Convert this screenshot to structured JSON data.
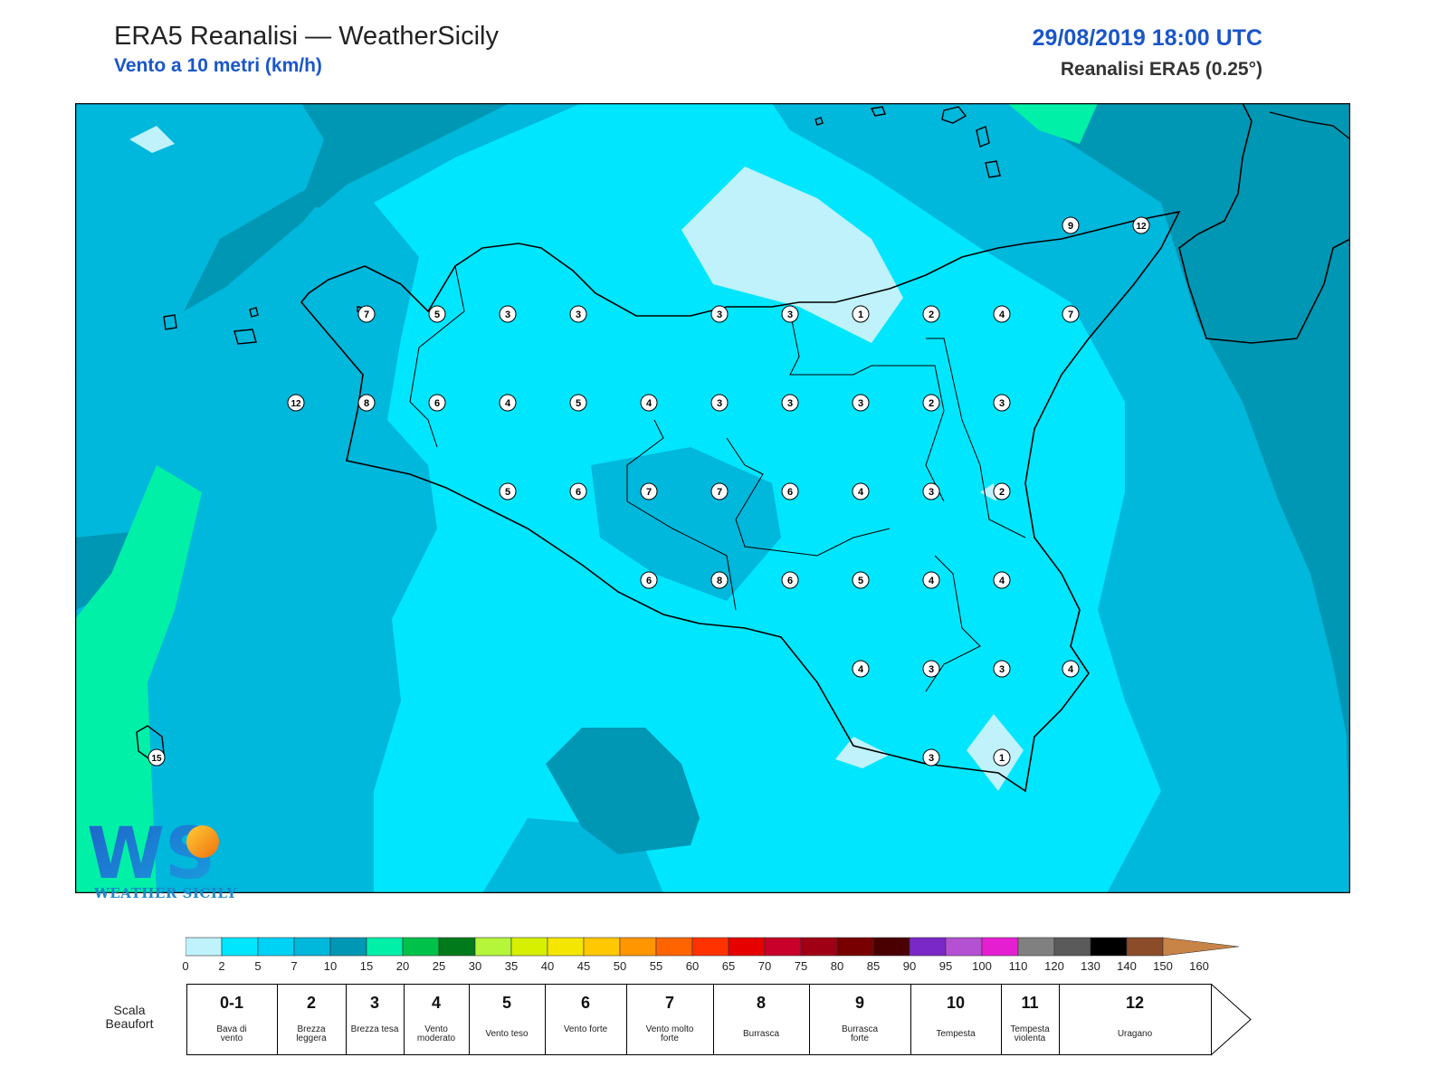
{
  "header": {
    "title": "ERA5 Reanalisi — WeatherSicily",
    "subtitle": "Vento a 10 metri (km/h)",
    "datetime": "29/08/2019 18:00 UTC",
    "source": "Reanalisi ERA5 (0.25°)"
  },
  "logo": {
    "text": "WEATHER SICILY",
    "mark": "WS"
  },
  "colors": {
    "sea_dark": "#0097b4",
    "mid": "#00b7dc",
    "light": "#00e6ff",
    "palest": "#bff2fb",
    "green": "#00f0a8",
    "coast": "#000000"
  },
  "map_values": [
    {
      "v": "7"
    },
    {
      "v": "5"
    },
    {
      "v": "3"
    },
    {
      "v": "3"
    },
    {
      "v": "3"
    },
    {
      "v": "3"
    },
    {
      "v": "1"
    },
    {
      "v": "2"
    },
    {
      "v": "4"
    },
    {
      "v": "7"
    },
    {
      "v": "12"
    },
    {
      "v": "8"
    },
    {
      "v": "6"
    },
    {
      "v": "4"
    },
    {
      "v": "5"
    },
    {
      "v": "4"
    },
    {
      "v": "3"
    },
    {
      "v": "3"
    },
    {
      "v": "3"
    },
    {
      "v": "2"
    },
    {
      "v": "3"
    },
    {
      "v": "5"
    },
    {
      "v": "6"
    },
    {
      "v": "7"
    },
    {
      "v": "7"
    },
    {
      "v": "6"
    },
    {
      "v": "4"
    },
    {
      "v": "3"
    },
    {
      "v": "2"
    },
    {
      "v": "6"
    },
    {
      "v": "8"
    },
    {
      "v": "6"
    },
    {
      "v": "5"
    },
    {
      "v": "4"
    },
    {
      "v": "4"
    },
    {
      "v": "4"
    },
    {
      "v": "3"
    },
    {
      "v": "3"
    },
    {
      "v": "4"
    },
    {
      "v": "3"
    },
    {
      "v": "1"
    },
    {
      "v": "9"
    },
    {
      "v": "12"
    },
    {
      "v": "15"
    }
  ],
  "colorbar": {
    "colors": [
      "#bff2fb",
      "#00e6ff",
      "#00d2f5",
      "#00b7dc",
      "#0097b4",
      "#00f0a8",
      "#00c24a",
      "#007a1a",
      "#b5f53a",
      "#d6f000",
      "#f5e600",
      "#ffc800",
      "#ff9600",
      "#ff6400",
      "#ff3200",
      "#e60000",
      "#c8002a",
      "#a00014",
      "#780000",
      "#4b0000",
      "#7a28c8",
      "#b450d2",
      "#e61ed2",
      "#808080",
      "#5a5a5a",
      "#000000",
      "#8b4c2a",
      "#c88446"
    ],
    "ticks": [
      "0",
      "2",
      "5",
      "7",
      "10",
      "15",
      "20",
      "25",
      "30",
      "35",
      "40",
      "45",
      "50",
      "55",
      "60",
      "65",
      "70",
      "75",
      "80",
      "85",
      "90",
      "95",
      "100",
      "110",
      "120",
      "130",
      "140",
      "150",
      "160"
    ]
  },
  "beaufort": {
    "label_line1": "Scala",
    "label_line2": "Beaufort",
    "cells": [
      {
        "num": "0-1",
        "desc": "Bava di vento"
      },
      {
        "num": "2",
        "desc": "Brezza leggera"
      },
      {
        "num": "3",
        "desc": "Brezza tesa"
      },
      {
        "num": "4",
        "desc": "Vento moderato"
      },
      {
        "num": "5",
        "desc": "Vento teso"
      },
      {
        "num": "6",
        "desc": "Vento forte"
      },
      {
        "num": "7",
        "desc": "Vento molto forte"
      },
      {
        "num": "8",
        "desc": "Burrasca"
      },
      {
        "num": "9",
        "desc": "Burrasca forte"
      },
      {
        "num": "10",
        "desc": "Tempesta"
      },
      {
        "num": "11",
        "desc": "Tempesta violenta"
      },
      {
        "num": "12",
        "desc": "Uragano"
      }
    ]
  }
}
